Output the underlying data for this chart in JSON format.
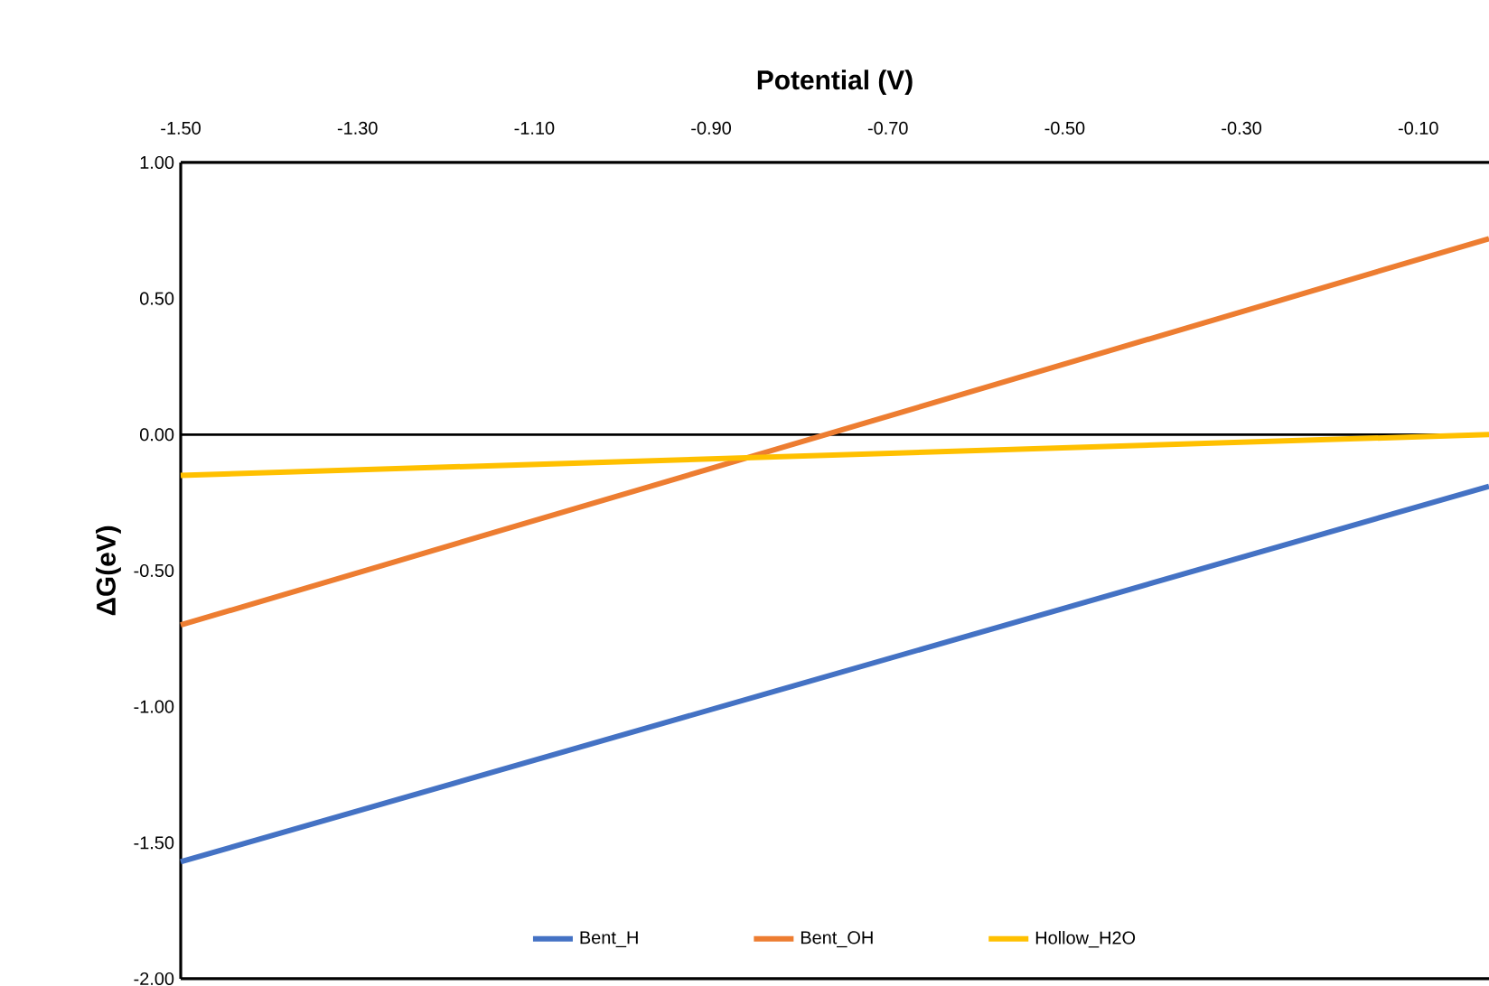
{
  "chart_data": {
    "type": "line",
    "xlabel": "Potential (V)",
    "ylabel": "ΔG(eV)",
    "x": [
      -1.5,
      -0.02
    ],
    "series": [
      {
        "name": "Bent_H",
        "color": "#4472c4",
        "values": [
          -1.57,
          -0.19
        ]
      },
      {
        "name": "Bent_OH",
        "color": "#ed7d31",
        "values": [
          -0.7,
          0.72
        ]
      },
      {
        "name": "Hollow_H2O",
        "color": "#ffc000",
        "values": [
          -0.15,
          0.0
        ]
      }
    ],
    "xlim": [
      -1.5,
      -0.02
    ],
    "ylim": [
      -2.0,
      1.0
    ],
    "xticks": [
      {
        "value": -1.5,
        "label": "-1.50"
      },
      {
        "value": -1.3,
        "label": "-1.30"
      },
      {
        "value": -1.1,
        "label": "-1.10"
      },
      {
        "value": -0.9,
        "label": "-0.90"
      },
      {
        "value": -0.7,
        "label": "-0.70"
      },
      {
        "value": -0.5,
        "label": "-0.50"
      },
      {
        "value": -0.3,
        "label": "-0.30"
      },
      {
        "value": -0.1,
        "label": "-0.10"
      }
    ],
    "yticks": [
      {
        "value": -2.0,
        "label": "-2.00"
      },
      {
        "value": -1.5,
        "label": "-1.50"
      },
      {
        "value": -1.0,
        "label": "-1.00"
      },
      {
        "value": -0.5,
        "label": "-0.50"
      },
      {
        "value": 0.0,
        "label": "0.00"
      },
      {
        "value": 0.5,
        "label": "0.50"
      },
      {
        "value": 1.0,
        "label": "1.00"
      }
    ],
    "legend": "bottom",
    "marker": "none",
    "line_style": "solid"
  }
}
